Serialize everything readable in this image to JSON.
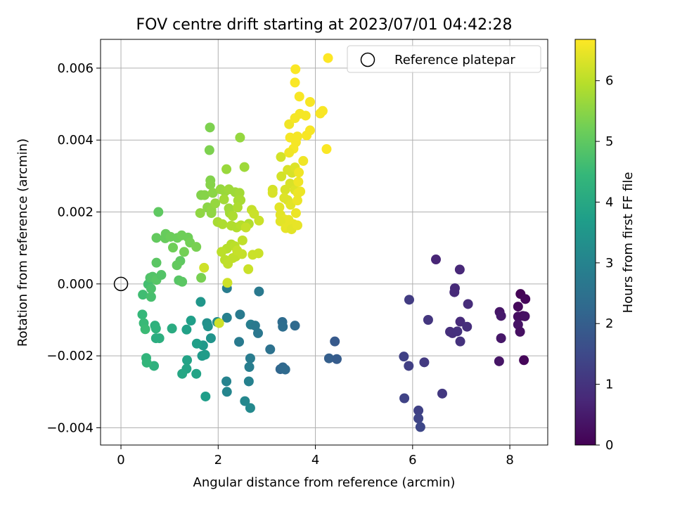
{
  "chart_data": {
    "type": "scatter",
    "title": "FOV centre drift starting at 2023/07/01 04:42:28",
    "xlabel": "Angular distance from reference (arcmin)",
    "ylabel": "Rotation from reference (arcmin)",
    "xlim": [
      -0.42,
      8.78
    ],
    "ylim": [
      -0.00448,
      0.0068
    ],
    "xticks": [
      0,
      2,
      4,
      6,
      8
    ],
    "xtick_labels": [
      "0",
      "2",
      "4",
      "6",
      "8"
    ],
    "yticks": [
      -0.004,
      -0.002,
      0.0,
      0.002,
      0.004,
      0.006
    ],
    "ytick_labels": [
      "−0.004",
      "−0.002",
      "0.000",
      "0.002",
      "0.004",
      "0.006"
    ],
    "grid": true,
    "legend": {
      "placement": "top-right",
      "entries": [
        {
          "label": "Reference platepar",
          "marker": "open-circle"
        }
      ]
    },
    "reference_point": {
      "x": 0.0,
      "y": 0.0
    },
    "colorbar": {
      "label": "Hours from first FF file",
      "colormap": "viridis",
      "range": [
        0,
        6.68
      ],
      "ticks": [
        0,
        1,
        2,
        3,
        4,
        5,
        6
      ],
      "tick_labels": [
        "0",
        "1",
        "2",
        "3",
        "4",
        "5",
        "6"
      ]
    },
    "colormap_stops": [
      "#440154",
      "#482878",
      "#3e4989",
      "#31688e",
      "#26828e",
      "#1f9e89",
      "#35b779",
      "#6ece58",
      "#b5de2b",
      "#fde725"
    ],
    "points": [
      [
        8.22,
        -0.00028,
        0.05
      ],
      [
        8.32,
        -0.00042,
        0.12
      ],
      [
        8.17,
        -0.00063,
        0.15
      ],
      [
        8.27,
        -0.00089,
        0.2
      ],
      [
        8.17,
        -0.00091,
        0.25
      ],
      [
        8.31,
        -0.0009,
        0.3
      ],
      [
        8.17,
        -0.00113,
        0.35
      ],
      [
        8.21,
        -0.00133,
        0.28
      ],
      [
        8.29,
        -0.00212,
        0.1
      ],
      [
        7.79,
        -0.00078,
        0.4
      ],
      [
        7.82,
        -0.00089,
        0.45
      ],
      [
        7.82,
        -0.00151,
        0.42
      ],
      [
        7.78,
        -0.00215,
        0.38
      ],
      [
        6.48,
        0.00068,
        0.7
      ],
      [
        6.97,
        0.0004,
        0.75
      ],
      [
        6.87,
        -0.00012,
        0.8
      ],
      [
        6.86,
        -0.00023,
        0.78
      ],
      [
        7.14,
        -0.00056,
        0.85
      ],
      [
        6.98,
        -0.00105,
        0.82
      ],
      [
        7.12,
        -0.00119,
        0.88
      ],
      [
        6.77,
        -0.00133,
        0.9
      ],
      [
        6.82,
        -0.00137,
        0.92
      ],
      [
        6.92,
        -0.00132,
        0.95
      ],
      [
        6.98,
        -0.0016,
        0.96
      ],
      [
        6.32,
        -0.001,
        1.05
      ],
      [
        5.93,
        -0.00044,
        1.2
      ],
      [
        5.82,
        -0.00202,
        1.3
      ],
      [
        5.92,
        -0.00228,
        1.25
      ],
      [
        6.24,
        -0.00218,
        1.15
      ],
      [
        6.61,
        -0.00305,
        1.1
      ],
      [
        5.83,
        -0.00318,
        1.35
      ],
      [
        6.12,
        -0.00352,
        1.3
      ],
      [
        6.12,
        -0.00374,
        1.4
      ],
      [
        6.16,
        -0.00398,
        1.45
      ],
      [
        4.4,
        -0.0016,
        1.9
      ],
      [
        4.28,
        -0.00207,
        2.0
      ],
      [
        4.44,
        -0.00209,
        1.95
      ],
      [
        3.58,
        -0.00116,
        2.3
      ],
      [
        3.32,
        -0.00106,
        2.35
      ],
      [
        3.33,
        -0.00119,
        2.4
      ],
      [
        3.07,
        -0.00182,
        2.5
      ],
      [
        3.28,
        -0.00237,
        2.2
      ],
      [
        3.33,
        -0.00232,
        2.25
      ],
      [
        3.38,
        -0.00238,
        2.3
      ],
      [
        2.84,
        -0.00021,
        2.7
      ],
      [
        2.45,
        -0.00085,
        2.75
      ],
      [
        2.18,
        -0.00012,
        2.8
      ],
      [
        2.18,
        -0.00094,
        2.9
      ],
      [
        2.67,
        -0.00113,
        2.85
      ],
      [
        2.76,
        -0.00116,
        2.7
      ],
      [
        2.82,
        -0.00137,
        2.65
      ],
      [
        2.43,
        -0.00161,
        2.75
      ],
      [
        2.66,
        -0.00207,
        2.8
      ],
      [
        2.64,
        -0.00231,
        2.85
      ],
      [
        2.17,
        -0.00271,
        3.0
      ],
      [
        2.63,
        -0.00271,
        2.95
      ],
      [
        2.18,
        -0.003,
        3.05
      ],
      [
        2.55,
        -0.00326,
        3.1
      ],
      [
        2.66,
        -0.00345,
        3.15
      ],
      [
        1.98,
        -0.00106,
        3.3
      ],
      [
        1.77,
        -0.00109,
        3.35
      ],
      [
        1.79,
        -0.00118,
        3.4
      ],
      [
        1.64,
        -0.0005,
        3.5
      ],
      [
        1.85,
        -0.00151,
        3.45
      ],
      [
        1.69,
        -0.00171,
        3.55
      ],
      [
        1.67,
        -0.002,
        3.6
      ],
      [
        1.73,
        -0.00197,
        3.65
      ],
      [
        1.74,
        -0.00313,
        3.7
      ],
      [
        1.44,
        -0.00102,
        3.75
      ],
      [
        1.35,
        -0.00127,
        3.8
      ],
      [
        1.56,
        -0.00166,
        3.75
      ],
      [
        1.36,
        -0.00212,
        3.85
      ],
      [
        1.35,
        -0.00236,
        3.9
      ],
      [
        1.26,
        -0.0025,
        3.95
      ],
      [
        1.55,
        -0.0025,
        3.85
      ],
      [
        1.05,
        -0.00124,
        4.1
      ],
      [
        0.79,
        -0.00151,
        4.2
      ],
      [
        0.72,
        -0.00151,
        4.15
      ],
      [
        0.7,
        -0.00116,
        4.25
      ],
      [
        0.72,
        -0.00124,
        4.3
      ],
      [
        0.68,
        -0.00228,
        4.25
      ],
      [
        0.52,
        -0.00206,
        4.35
      ],
      [
        0.53,
        -0.00219,
        4.4
      ],
      [
        0.44,
        -0.00085,
        4.45
      ],
      [
        0.47,
        -0.00109,
        4.5
      ],
      [
        0.5,
        -0.00126,
        4.55
      ],
      [
        0.45,
        -0.0003,
        4.6
      ],
      [
        0.56,
        -1e-05,
        4.65
      ],
      [
        0.62,
        -0.00036,
        4.7
      ],
      [
        0.62,
        -0.00013,
        4.75
      ],
      [
        0.6,
        0.00017,
        4.8
      ],
      [
        0.65,
        0.0002,
        4.85
      ],
      [
        0.73,
        0.00011,
        4.9
      ],
      [
        0.83,
        0.00025,
        4.85
      ],
      [
        0.73,
        0.00059,
        4.95
      ],
      [
        1.19,
        0.0001,
        4.9
      ],
      [
        1.26,
        6e-05,
        4.95
      ],
      [
        1.22,
        0.00064,
        5.0
      ],
      [
        1.15,
        0.00052,
        5.05
      ],
      [
        0.77,
        0.002,
        5.0
      ],
      [
        0.73,
        0.00128,
        5.05
      ],
      [
        0.91,
        0.00127,
        5.1
      ],
      [
        0.92,
        0.00139,
        5.1
      ],
      [
        1.02,
        0.00131,
        5.15
      ],
      [
        1.16,
        0.00128,
        5.15
      ],
      [
        1.25,
        0.00135,
        5.2
      ],
      [
        1.38,
        0.00129,
        5.2
      ],
      [
        1.42,
        0.00115,
        5.25
      ],
      [
        1.07,
        0.00101,
        5.2
      ],
      [
        1.3,
        0.00089,
        5.25
      ],
      [
        1.55,
        0.00103,
        5.3
      ],
      [
        1.65,
        0.00017,
        5.3
      ],
      [
        1.83,
        0.00435,
        5.35
      ],
      [
        1.82,
        0.00372,
        5.35
      ],
      [
        1.84,
        0.00288,
        5.4
      ],
      [
        1.84,
        0.00276,
        5.45
      ],
      [
        1.65,
        0.00247,
        5.4
      ],
      [
        1.72,
        0.00247,
        5.45
      ],
      [
        1.89,
        0.00253,
        5.5
      ],
      [
        1.78,
        0.00213,
        5.5
      ],
      [
        1.86,
        0.00205,
        5.55
      ],
      [
        1.86,
        0.00197,
        5.55
      ],
      [
        1.94,
        0.00224,
        5.6
      ],
      [
        1.63,
        0.00197,
        5.55
      ],
      [
        2.05,
        0.00263,
        5.6
      ],
      [
        2.14,
        0.00257,
        5.65
      ],
      [
        2.22,
        0.00263,
        5.7
      ],
      [
        2.17,
        0.00319,
        5.65
      ],
      [
        2.35,
        0.00255,
        5.7
      ],
      [
        2.44,
        0.00253,
        5.75
      ],
      [
        2.12,
        0.00235,
        5.75
      ],
      [
        2.22,
        0.0021,
        5.7
      ],
      [
        2.24,
        0.00197,
        5.75
      ],
      [
        2.41,
        0.00232,
        5.8
      ],
      [
        2.46,
        0.00233,
        5.8
      ],
      [
        2.4,
        0.00213,
        5.85
      ],
      [
        2.3,
        0.00189,
        5.85
      ],
      [
        2.45,
        0.00407,
        5.6
      ],
      [
        2.54,
        0.00325,
        5.7
      ],
      [
        1.99,
        0.00172,
        5.8
      ],
      [
        2.09,
        0.00166,
        5.85
      ],
      [
        2.27,
        0.00162,
        5.9
      ],
      [
        2.38,
        0.00157,
        5.9
      ],
      [
        2.47,
        0.00163,
        5.95
      ],
      [
        2.63,
        0.00167,
        5.9
      ],
      [
        2.18,
        0.00098,
        5.95
      ],
      [
        2.27,
        0.0011,
        5.95
      ],
      [
        2.34,
        0.00105,
        6.0
      ],
      [
        2.07,
        0.00089,
        6.0
      ],
      [
        2.14,
        0.00067,
        6.0
      ],
      [
        2.2,
        0.00056,
        6.05
      ],
      [
        2.3,
        0.00072,
        6.05
      ],
      [
        2.36,
        0.00076,
        6.05
      ],
      [
        2.39,
        0.00093,
        6.1
      ],
      [
        2.49,
        0.00083,
        6.1
      ],
      [
        2.5,
        0.00121,
        6.05
      ],
      [
        2.57,
        0.00157,
        6.1
      ],
      [
        2.69,
        0.00206,
        6.1
      ],
      [
        2.74,
        0.00195,
        6.15
      ],
      [
        2.84,
        0.00176,
        6.15
      ],
      [
        2.71,
        0.00081,
        6.15
      ],
      [
        2.83,
        0.00085,
        6.15
      ],
      [
        2.62,
        0.00041,
        6.15
      ],
      [
        2.19,
        3e-05,
        6.2
      ],
      [
        2.02,
        -0.00109,
        6.2
      ],
      [
        1.71,
        0.00045,
        6.2
      ],
      [
        3.29,
        0.00353,
        6.25
      ],
      [
        3.3,
        0.00299,
        6.25
      ],
      [
        3.43,
        0.00317,
        6.3
      ],
      [
        3.52,
        0.00309,
        6.3
      ],
      [
        3.58,
        0.00324,
        6.35
      ],
      [
        3.48,
        0.00279,
        6.3
      ],
      [
        3.58,
        0.00261,
        6.35
      ],
      [
        3.38,
        0.00262,
        6.3
      ],
      [
        3.12,
        0.00262,
        6.25
      ],
      [
        3.12,
        0.00253,
        6.3
      ],
      [
        3.36,
        0.00239,
        6.35
      ],
      [
        3.43,
        0.00233,
        6.35
      ],
      [
        3.26,
        0.00213,
        6.4
      ],
      [
        3.49,
        0.0022,
        6.4
      ],
      [
        3.28,
        0.00192,
        6.4
      ],
      [
        3.37,
        0.00179,
        6.45
      ],
      [
        3.45,
        0.00178,
        6.45
      ],
      [
        3.28,
        0.00174,
        6.4
      ],
      [
        3.55,
        0.00166,
        6.45
      ],
      [
        3.39,
        0.00155,
        6.45
      ],
      [
        3.51,
        0.00152,
        6.4
      ],
      [
        3.63,
        0.00163,
        6.45
      ],
      [
        3.6,
        0.00197,
        6.5
      ],
      [
        3.63,
        0.00232,
        6.5
      ],
      [
        3.64,
        0.00252,
        6.5
      ],
      [
        3.69,
        0.00257,
        6.5
      ],
      [
        3.65,
        0.00284,
        6.55
      ],
      [
        3.75,
        0.00342,
        6.55
      ],
      [
        3.66,
        0.0031,
        6.55
      ],
      [
        3.46,
        0.00444,
        6.55
      ],
      [
        3.48,
        0.00407,
        6.6
      ],
      [
        3.6,
        0.00394,
        6.6
      ],
      [
        3.55,
        0.00376,
        6.6
      ],
      [
        3.63,
        0.0041,
        6.6
      ],
      [
        3.46,
        0.00365,
        6.55
      ],
      [
        3.58,
        0.00461,
        6.6
      ],
      [
        3.68,
        0.00473,
        6.6
      ],
      [
        3.8,
        0.00468,
        6.6
      ],
      [
        3.82,
        0.00413,
        6.62
      ],
      [
        3.89,
        0.00427,
        6.62
      ],
      [
        3.89,
        0.00506,
        6.62
      ],
      [
        4.1,
        0.00474,
        6.63
      ],
      [
        4.15,
        0.00481,
        6.63
      ],
      [
        4.23,
        0.00375,
        6.65
      ],
      [
        3.67,
        0.00521,
        6.63
      ],
      [
        3.58,
        0.0056,
        6.64
      ],
      [
        3.59,
        0.00597,
        6.65
      ],
      [
        4.26,
        0.00628,
        6.68
      ]
    ]
  }
}
